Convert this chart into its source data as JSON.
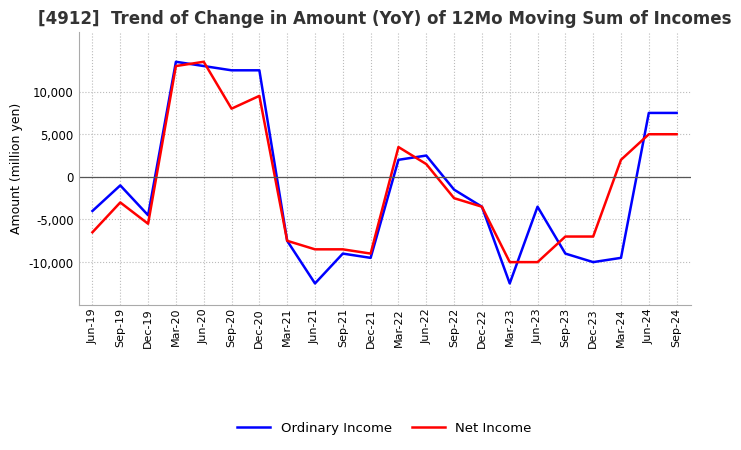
{
  "title": "[4912]  Trend of Change in Amount (YoY) of 12Mo Moving Sum of Incomes",
  "ylabel": "Amount (million yen)",
  "x_labels": [
    "Jun-19",
    "Sep-19",
    "Dec-19",
    "Mar-20",
    "Jun-20",
    "Sep-20",
    "Dec-20",
    "Mar-21",
    "Jun-21",
    "Sep-21",
    "Dec-21",
    "Mar-22",
    "Jun-22",
    "Sep-22",
    "Dec-22",
    "Mar-23",
    "Jun-23",
    "Sep-23",
    "Dec-23",
    "Mar-24",
    "Jun-24",
    "Sep-24"
  ],
  "ordinary_income": [
    -4000,
    -1000,
    -4500,
    13500,
    13000,
    12500,
    12500,
    -7500,
    -12500,
    -9000,
    -9500,
    2000,
    2500,
    -1500,
    -3500,
    -12500,
    -3500,
    -9000,
    -10000,
    -9500,
    7500,
    7500
  ],
  "net_income": [
    -6500,
    -3000,
    -5500,
    13000,
    13500,
    8000,
    9500,
    -7500,
    -8500,
    -8500,
    -9000,
    3500,
    1500,
    -2500,
    -3500,
    -10000,
    -10000,
    -7000,
    -7000,
    2000,
    5000,
    5000
  ],
  "ordinary_color": "#0000ff",
  "net_color": "#ff0000",
  "ylim": [
    -15000,
    17000
  ],
  "yticks": [
    -10000,
    -5000,
    0,
    5000,
    10000
  ],
  "grid_color": "#bbbbbb",
  "background_color": "#ffffff",
  "title_fontsize": 12,
  "legend_labels": [
    "Ordinary Income",
    "Net Income"
  ]
}
